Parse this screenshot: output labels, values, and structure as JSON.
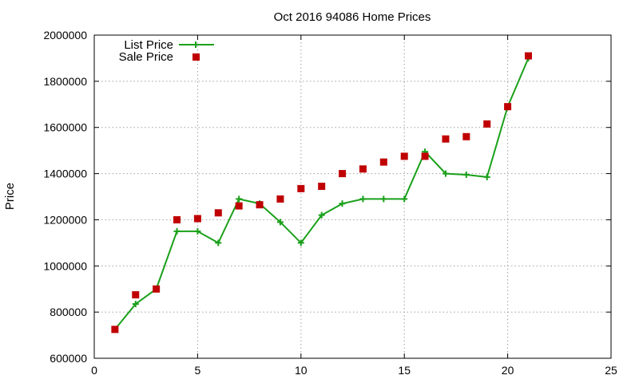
{
  "chart_data": {
    "type": "line",
    "title": "Oct 2016 94086 Home Prices",
    "xlabel": "",
    "ylabel": "Price",
    "xlim": [
      0,
      25
    ],
    "ylim": [
      600000,
      2000000
    ],
    "xticks": [
      0,
      5,
      10,
      15,
      20,
      25
    ],
    "yticks": [
      600000,
      800000,
      1000000,
      1200000,
      1400000,
      1600000,
      1800000,
      2000000
    ],
    "grid": true,
    "legend_position": "top-left",
    "series": [
      {
        "name": "List Price",
        "style": "line-plus",
        "color": "#1aa01a",
        "x": [
          1,
          2,
          3,
          4,
          5,
          6,
          7,
          8,
          9,
          10,
          11,
          12,
          13,
          14,
          15,
          16,
          17,
          18,
          19,
          20,
          21
        ],
        "y": [
          725000,
          835000,
          900000,
          1150000,
          1150000,
          1100000,
          1290000,
          1270000,
          1190000,
          1100000,
          1220000,
          1270000,
          1290000,
          1290000,
          1290000,
          1495000,
          1400000,
          1395000,
          1385000,
          1690000,
          1900000
        ]
      },
      {
        "name": "Sale Price",
        "style": "square-markers",
        "color": "#c00000",
        "x": [
          1,
          2,
          3,
          4,
          5,
          6,
          7,
          8,
          9,
          10,
          11,
          12,
          13,
          14,
          15,
          16,
          17,
          18,
          19,
          20,
          21
        ],
        "y": [
          725000,
          875000,
          900000,
          1200000,
          1205000,
          1230000,
          1260000,
          1265000,
          1290000,
          1335000,
          1345000,
          1400000,
          1420000,
          1450000,
          1475000,
          1475000,
          1550000,
          1560000,
          1615000,
          1690000,
          1910000
        ]
      }
    ]
  }
}
